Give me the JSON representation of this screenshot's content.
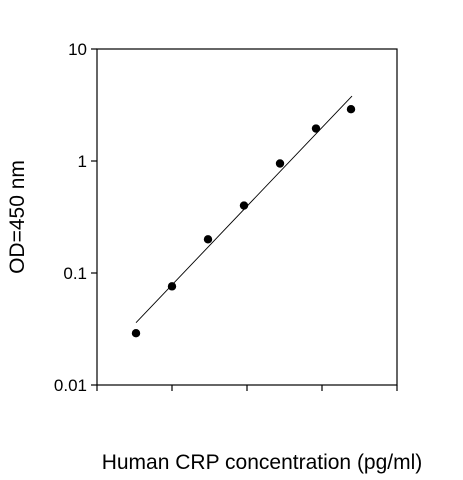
{
  "chart_data": {
    "type": "scatter",
    "title": "",
    "xlabel": "Human CRP concentration (pg/ml)",
    "ylabel": "OD=450 nm",
    "y_scale": "log",
    "ylim": [
      0.01,
      10
    ],
    "y_ticks": [
      {
        "value": 0.01,
        "label": "0.01"
      },
      {
        "value": 0.1,
        "label": "0.1"
      },
      {
        "value": 1,
        "label": "1"
      },
      {
        "value": 10,
        "label": "10"
      }
    ],
    "x_tick_labels_shown": false,
    "grid": false,
    "series": [
      {
        "type": "scatter",
        "marker": "filled-circle",
        "color": "#000000",
        "points_y": [
          0.029,
          0.076,
          0.2,
          0.4,
          0.95,
          1.95,
          2.9
        ]
      }
    ],
    "fit_line": {
      "color": "#000000",
      "y_start": 0.036,
      "y_end": 3.8
    }
  }
}
